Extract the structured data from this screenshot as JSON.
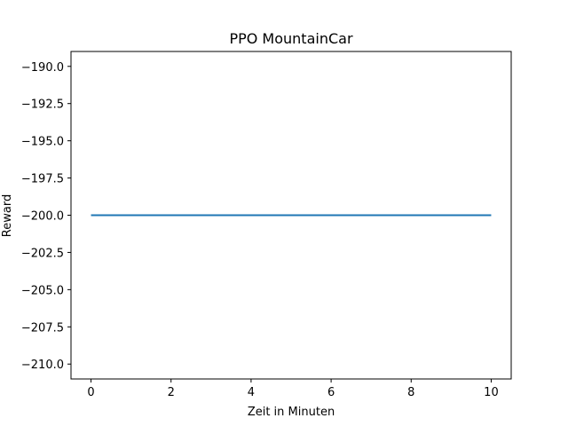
{
  "chart_data": {
    "type": "line",
    "title": "PPO MountainCar",
    "xlabel": "Zeit in Minuten",
    "ylabel": "Reward",
    "xlim": [
      -0.5,
      10.5
    ],
    "ylim": [
      -211.0,
      -189.0
    ],
    "xticks": [
      0,
      2,
      4,
      6,
      8,
      10
    ],
    "xtick_labels": [
      "0",
      "2",
      "4",
      "6",
      "8",
      "10"
    ],
    "yticks": [
      -190.0,
      -192.5,
      -195.0,
      -197.5,
      -200.0,
      -202.5,
      -205.0,
      -207.5,
      -210.0
    ],
    "ytick_labels": [
      "−190.0",
      "−192.5",
      "−195.0",
      "−197.5",
      "−200.0",
      "−202.5",
      "−205.0",
      "−207.5",
      "−210.0"
    ],
    "grid": false,
    "series": [
      {
        "color": "#1f77b4",
        "x": [
          0,
          10
        ],
        "y": [
          -200.0,
          -200.0
        ]
      }
    ]
  }
}
